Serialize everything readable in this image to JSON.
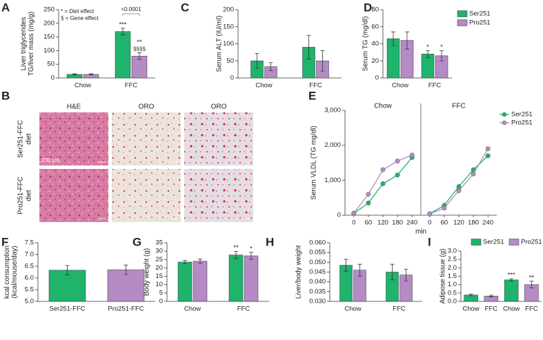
{
  "chart_data": [
    {
      "label": "A",
      "type": "bar",
      "ylabel": [
        "Liver triglycerides",
        "TG/liver mass (mg/g)"
      ],
      "categories": [
        "Chow",
        "FFC"
      ],
      "series": [
        {
          "color": "#1fb36c",
          "values": [
            13,
            170
          ],
          "errors": [
            2,
            12
          ],
          "sig": [
            null,
            "***"
          ]
        },
        {
          "color": "#b48bc4",
          "values": [
            13,
            80
          ],
          "errors": [
            2,
            12
          ],
          "sig": [
            null,
            "**"
          ],
          "sig2": [
            null,
            "§§§§"
          ]
        }
      ],
      "ylim": [
        0,
        250
      ],
      "yticks": [
        0,
        50,
        100,
        150,
        200,
        250
      ],
      "notes": [
        "* = Diet effect",
        "§ = Gene effect"
      ],
      "bracket": "<0.0001"
    },
    {
      "label": "B",
      "type": "image-grid",
      "columns": [
        "H&E",
        "ORO",
        "ORO"
      ],
      "rows": [
        [
          "Ser251-FFC",
          "diet"
        ],
        [
          "Pro251-FFC",
          "diet"
        ]
      ],
      "scale_bar": "200 µm"
    },
    {
      "label": "C",
      "type": "bar",
      "ylabel": "Serum ALT (IU/ml)",
      "categories": [
        "Chow",
        "FFC"
      ],
      "series": [
        {
          "color": "#1fb36c",
          "values": [
            50,
            90
          ],
          "errors": [
            22,
            35
          ]
        },
        {
          "color": "#b48bc4",
          "values": [
            33,
            50
          ],
          "errors": [
            12,
            30
          ]
        }
      ],
      "ylim": [
        0,
        200
      ],
      "yticks": [
        0,
        50,
        100,
        150,
        200
      ]
    },
    {
      "label": "D",
      "type": "bar",
      "ylabel": "Serum TG (mg/dl)",
      "categories": [
        "Chow",
        "FFC"
      ],
      "legend": "right",
      "series": [
        {
          "name": "Ser251",
          "color": "#1fb36c",
          "values": [
            46,
            28
          ],
          "errors": [
            8,
            4
          ],
          "sig": [
            null,
            "*"
          ]
        },
        {
          "name": "Pro251",
          "color": "#b48bc4",
          "values": [
            44,
            26
          ],
          "errors": [
            10,
            6
          ],
          "sig": [
            null,
            "*"
          ]
        }
      ],
      "ylim": [
        0,
        80
      ],
      "yticks": [
        0,
        20,
        40,
        60,
        80
      ]
    },
    {
      "label": "E",
      "type": "line",
      "ylabel": "Serum VLDL (TG mg/dl)",
      "xlabel": "min",
      "x": [
        0,
        60,
        120,
        180,
        240
      ],
      "xlim": [
        -25,
        265
      ],
      "ylim": [
        0,
        3000
      ],
      "yticks": [
        0,
        {
          "value": 1000,
          "label": "1,000"
        },
        {
          "value": 2000,
          "label": "2,000"
        },
        {
          "value": 3000,
          "label": "3,000"
        }
      ],
      "legend": "right",
      "facets": [
        {
          "title": "Chow",
          "series": [
            {
              "name": "Ser251",
              "color": "#1fb36c",
              "values": [
                50,
                350,
                900,
                1150,
                1650
              ]
            },
            {
              "name": "Pro251",
              "color": "#b48bc4",
              "values": [
                60,
                600,
                1300,
                1550,
                1720
              ]
            }
          ]
        },
        {
          "title": "FFC",
          "series": [
            {
              "color": "#1fb36c",
              "values": [
                40,
                280,
                820,
                1300,
                1700
              ]
            },
            {
              "color": "#b48bc4",
              "values": [
                40,
                200,
                700,
                1180,
                1900
              ]
            }
          ]
        }
      ]
    },
    {
      "label": "F",
      "type": "bar",
      "ylabel": [
        "kcal consumption",
        "(kcal/mouse/day)"
      ],
      "categories": [
        "Ser251-FFC",
        "Pro251-FFC"
      ],
      "values": [
        6.33,
        6.35
      ],
      "errors": [
        0.2,
        0.2
      ],
      "colors": [
        "#1fb36c",
        "#b48bc4"
      ],
      "ylim": [
        5,
        7.5
      ],
      "yticks": [
        {
          "value": 5,
          "label": "5.0"
        },
        5.5,
        {
          "value": 6,
          "label": "6.0"
        },
        6.5,
        {
          "value": 7,
          "label": "7.0"
        },
        7.5
      ]
    },
    {
      "label": "G",
      "type": "bar",
      "ylabel": "Body weight (g)",
      "categories": [
        "Chow",
        "FFC"
      ],
      "series": [
        {
          "color": "#1fb36c",
          "values": [
            23.5,
            27.7
          ],
          "errors": [
            1,
            2.2
          ],
          "sig": [
            null,
            "**"
          ]
        },
        {
          "color": "#b48bc4",
          "values": [
            24,
            27.2
          ],
          "errors": [
            1.2,
            2
          ],
          "sig": [
            null,
            "*"
          ]
        }
      ],
      "ylim": [
        0,
        35
      ],
      "yticks": [
        0,
        5,
        10,
        15,
        20,
        25,
        30,
        35
      ]
    },
    {
      "label": "H",
      "type": "bar",
      "ylabel": "Liver/body weight",
      "categories": [
        "Chow",
        "FFC"
      ],
      "series": [
        {
          "color": "#1fb36c",
          "values": [
            0.0485,
            0.045
          ],
          "errors": [
            0.003,
            0.004
          ]
        },
        {
          "color": "#b48bc4",
          "values": [
            0.046,
            0.0435
          ],
          "errors": [
            0.003,
            0.003
          ]
        }
      ],
      "ylim": [
        0.03,
        0.06
      ],
      "yticks": [
        {
          "value": 0.03,
          "label": "0.030"
        },
        0.035,
        {
          "value": 0.04,
          "label": "0.040"
        },
        0.045,
        {
          "value": 0.05,
          "label": "0.050"
        },
        0.055,
        {
          "value": 0.06,
          "label": "0.060"
        }
      ]
    },
    {
      "label": "I",
      "type": "bar",
      "ylabel": "Adipose tissue (g)",
      "categories": [
        "Chow",
        "FFC",
        "Chow",
        "FFC"
      ],
      "legend": "top",
      "series": [
        {
          "name": "Ser251",
          "color": "#1fb36c",
          "values": [
            0.38,
            null,
            1.28,
            null
          ],
          "errors": [
            0.05,
            null,
            0.07,
            null
          ],
          "sig": [
            null,
            null,
            "***",
            null
          ]
        },
        {
          "name": "Pro251",
          "color": "#b48bc4",
          "values": [
            null,
            0.32,
            null,
            1.0
          ],
          "errors": [
            null,
            0.05,
            null,
            0.2
          ],
          "sig": [
            null,
            null,
            null,
            "**"
          ]
        }
      ],
      "ylim": [
        0,
        3
      ],
      "yticks": [
        {
          "value": 0,
          "label": "0.0"
        },
        0.5,
        {
          "value": 1,
          "label": "1.0"
        },
        1.5,
        {
          "value": 2,
          "label": "2.0"
        },
        2.5,
        {
          "value": 3,
          "label": "3.0"
        }
      ]
    }
  ]
}
